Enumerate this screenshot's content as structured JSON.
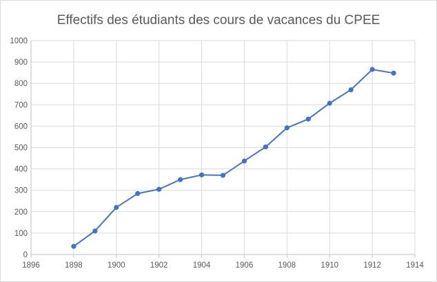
{
  "chart_data": {
    "type": "scatter",
    "title": "Effectifs des étudiants des cours de vacances du CPEE",
    "xlabel": "",
    "ylabel": "",
    "xlim": [
      1896,
      1914
    ],
    "ylim": [
      0,
      1000
    ],
    "x_ticks": [
      1896,
      1898,
      1900,
      1902,
      1904,
      1906,
      1908,
      1910,
      1912,
      1914
    ],
    "y_ticks": [
      0,
      100,
      200,
      300,
      400,
      500,
      600,
      700,
      800,
      900,
      1000
    ],
    "grid": true,
    "legend": "none",
    "line_color": "#4472c4",
    "series": [
      {
        "x": [
          1898,
          1899,
          1900,
          1901,
          1902,
          1903,
          1904,
          1905,
          1906,
          1907,
          1908,
          1909,
          1910,
          1911,
          1912,
          1913
        ],
        "y": [
          38,
          110,
          220,
          285,
          305,
          350,
          372,
          370,
          437,
          503,
          592,
          633,
          707,
          770,
          865,
          848
        ]
      }
    ]
  }
}
